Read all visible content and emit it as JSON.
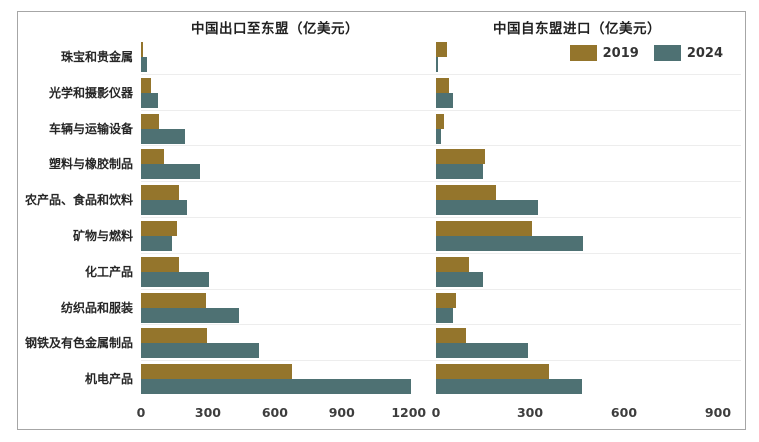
{
  "page": {
    "background": "#ffffff",
    "frame_border_color": "#a6a6a6",
    "gridline_color": "#ededed"
  },
  "legend": {
    "position": "top-right-of-import-chart",
    "items": [
      {
        "label": "2019",
        "color": "#94752C"
      },
      {
        "label": "2024",
        "color": "#4E7173"
      }
    ]
  },
  "chart_data": [
    {
      "type": "bar",
      "orientation": "horizontal",
      "title": "中国出口至东盟（亿美元）",
      "unit": "亿美元",
      "categories": [
        "珠宝和贵金属",
        "光学和摄影仪器",
        "车辆与运输设备",
        "塑料与橡胶制品",
        "农产品、食品和饮料",
        "矿物与燃料",
        "化工产品",
        "纺织品和服装",
        "钢铁及有色金属制品",
        "机电产品"
      ],
      "series": [
        {
          "name": "2019",
          "color": "#94752C",
          "values": [
            8,
            45,
            80,
            105,
            170,
            160,
            170,
            290,
            295,
            675
          ]
        },
        {
          "name": "2024",
          "color": "#4E7173",
          "values": [
            25,
            75,
            195,
            265,
            205,
            140,
            305,
            440,
            530,
            1210
          ]
        }
      ],
      "xlim": [
        0,
        1200
      ],
      "xticks": [
        0,
        300,
        600,
        900,
        1200
      ],
      "grid": "category-separators-only"
    },
    {
      "type": "bar",
      "orientation": "horizontal",
      "title": "中国自东盟进口（亿美元）",
      "unit": "亿美元",
      "categories": [
        "珠宝和贵金属",
        "光学和摄影仪器",
        "车辆与运输设备",
        "塑料与橡胶制品",
        "农产品、食品和饮料",
        "矿物与燃料",
        "化工产品",
        "纺织品和服装",
        "钢铁及有色金属制品",
        "机电产品"
      ],
      "series": [
        {
          "name": "2019",
          "color": "#94752C",
          "values": [
            35,
            40,
            25,
            155,
            190,
            305,
            105,
            65,
            95,
            360
          ]
        },
        {
          "name": "2024",
          "color": "#4E7173",
          "values": [
            5,
            55,
            15,
            150,
            325,
            470,
            150,
            55,
            295,
            465
          ]
        }
      ],
      "xlim": [
        0,
        900
      ],
      "xticks": [
        0,
        300,
        600,
        900
      ],
      "grid": "category-separators-only"
    }
  ]
}
